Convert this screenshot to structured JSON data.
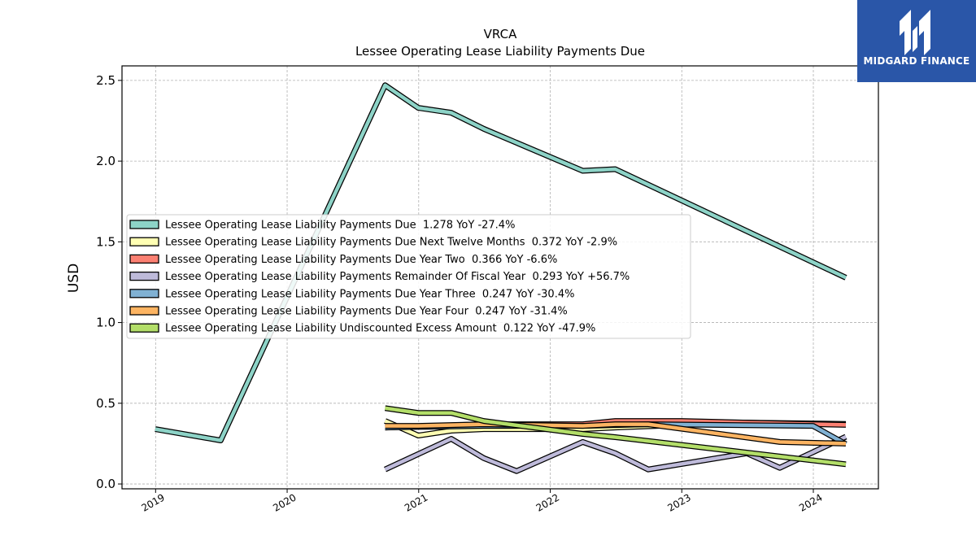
{
  "brand": {
    "name": "MIDGARD FINANCE",
    "logo_icon": "midgard-m-logo-icon",
    "color": "#2a56a8"
  },
  "chart_data": {
    "type": "line",
    "title": "VRCA",
    "subtitle": "Lessee Operating Lease Liability Payments Due",
    "ylabel": "USD",
    "xlabel": "",
    "x_ticks": [
      "2019",
      "2020",
      "2021",
      "2022",
      "2023",
      "2024"
    ],
    "y_ticks": [
      "0.0",
      "0.5",
      "1.0",
      "1.5",
      "2.0",
      "2.5"
    ],
    "ylim": [
      -0.03,
      2.59
    ],
    "xlim": [
      "2018-09-30",
      "2024-06-30"
    ],
    "grid": true,
    "legend_position": "center-left",
    "series": [
      {
        "name": "Lessee Operating Lease Liability Payments Due",
        "legend": "Lessee Operating Lease Liability Payments Due  1.278 YoY -27.4%",
        "color": "#8dd3c7",
        "x": [
          "2018-12-31",
          "2019-06-30",
          "2020-09-30",
          "2020-12-31",
          "2021-03-31",
          "2021-06-30",
          "2022-03-31",
          "2022-06-30",
          "2024-03-31"
        ],
        "y": [
          0.34,
          0.27,
          2.47,
          2.33,
          2.3,
          2.2,
          1.94,
          1.95,
          1.278
        ]
      },
      {
        "name": "Lessee Operating Lease Liability Payments Due Next Twelve Months",
        "legend": "Lessee Operating Lease Liability Payments Due Next Twelve Months  0.372 YoY -2.9%",
        "color": "#ffffb3",
        "x": [
          "2020-09-30",
          "2020-12-31",
          "2021-03-31",
          "2021-06-30",
          "2022-03-31",
          "2022-06-30",
          "2023-06-30",
          "2024-03-31"
        ],
        "y": [
          0.39,
          0.3,
          0.33,
          0.34,
          0.34,
          0.35,
          0.38,
          0.372
        ]
      },
      {
        "name": "Lessee Operating Lease Liability Payments Due Year Two",
        "legend": "Lessee Operating Lease Liability Payments Due Year Two  0.366 YoY -6.6%",
        "color": "#fb8072",
        "x": [
          "2020-09-30",
          "2021-06-30",
          "2022-03-31",
          "2022-06-30",
          "2022-12-31",
          "2023-06-30",
          "2024-03-31"
        ],
        "y": [
          0.35,
          0.37,
          0.37,
          0.39,
          0.39,
          0.38,
          0.366
        ]
      },
      {
        "name": "Lessee Operating Lease Liability Payments Remainder Of Fiscal Year",
        "legend": "Lessee Operating Lease Liability Payments Remainder Of Fiscal Year  0.293 YoY +56.7%",
        "color": "#bebada",
        "x": [
          "2020-09-30",
          "2021-03-31",
          "2021-06-30",
          "2021-09-30",
          "2022-03-31",
          "2022-06-30",
          "2022-09-30",
          "2023-06-30",
          "2023-09-30",
          "2024-03-31"
        ],
        "y": [
          0.09,
          0.28,
          0.16,
          0.08,
          0.26,
          0.19,
          0.09,
          0.19,
          0.1,
          0.293
        ]
      },
      {
        "name": "Lessee Operating Lease Liability Payments Due Year Three",
        "legend": "Lessee Operating Lease Liability Payments Due Year Three  0.247 YoY -30.4%",
        "color": "#80b1d3",
        "x": [
          "2020-09-30",
          "2021-06-30",
          "2022-03-31",
          "2022-09-30",
          "2023-12-31",
          "2024-03-31"
        ],
        "y": [
          0.35,
          0.36,
          0.36,
          0.37,
          0.36,
          0.247
        ]
      },
      {
        "name": "Lessee Operating Lease Liability Payments Due Year Four",
        "legend": "Lessee Operating Lease Liability Payments Due Year Four  0.247 YoY -31.4%",
        "color": "#fdb462",
        "x": [
          "2020-09-30",
          "2020-12-31",
          "2021-06-30",
          "2022-03-31",
          "2022-06-30",
          "2022-09-30",
          "2023-09-30",
          "2024-03-31"
        ],
        "y": [
          0.36,
          0.36,
          0.37,
          0.36,
          0.37,
          0.37,
          0.26,
          0.25
        ]
      },
      {
        "name": "Lessee Operating Lease Liability Undiscounted Excess Amount",
        "legend": "Lessee Operating Lease Liability Undiscounted Excess Amount  0.122 YoY -47.9%",
        "color": "#b3de69",
        "x": [
          "2020-09-30",
          "2020-12-31",
          "2021-03-31",
          "2021-06-30",
          "2022-03-31",
          "2022-06-30",
          "2024-03-31"
        ],
        "y": [
          0.47,
          0.44,
          0.44,
          0.39,
          0.31,
          0.29,
          0.122
        ]
      }
    ]
  }
}
